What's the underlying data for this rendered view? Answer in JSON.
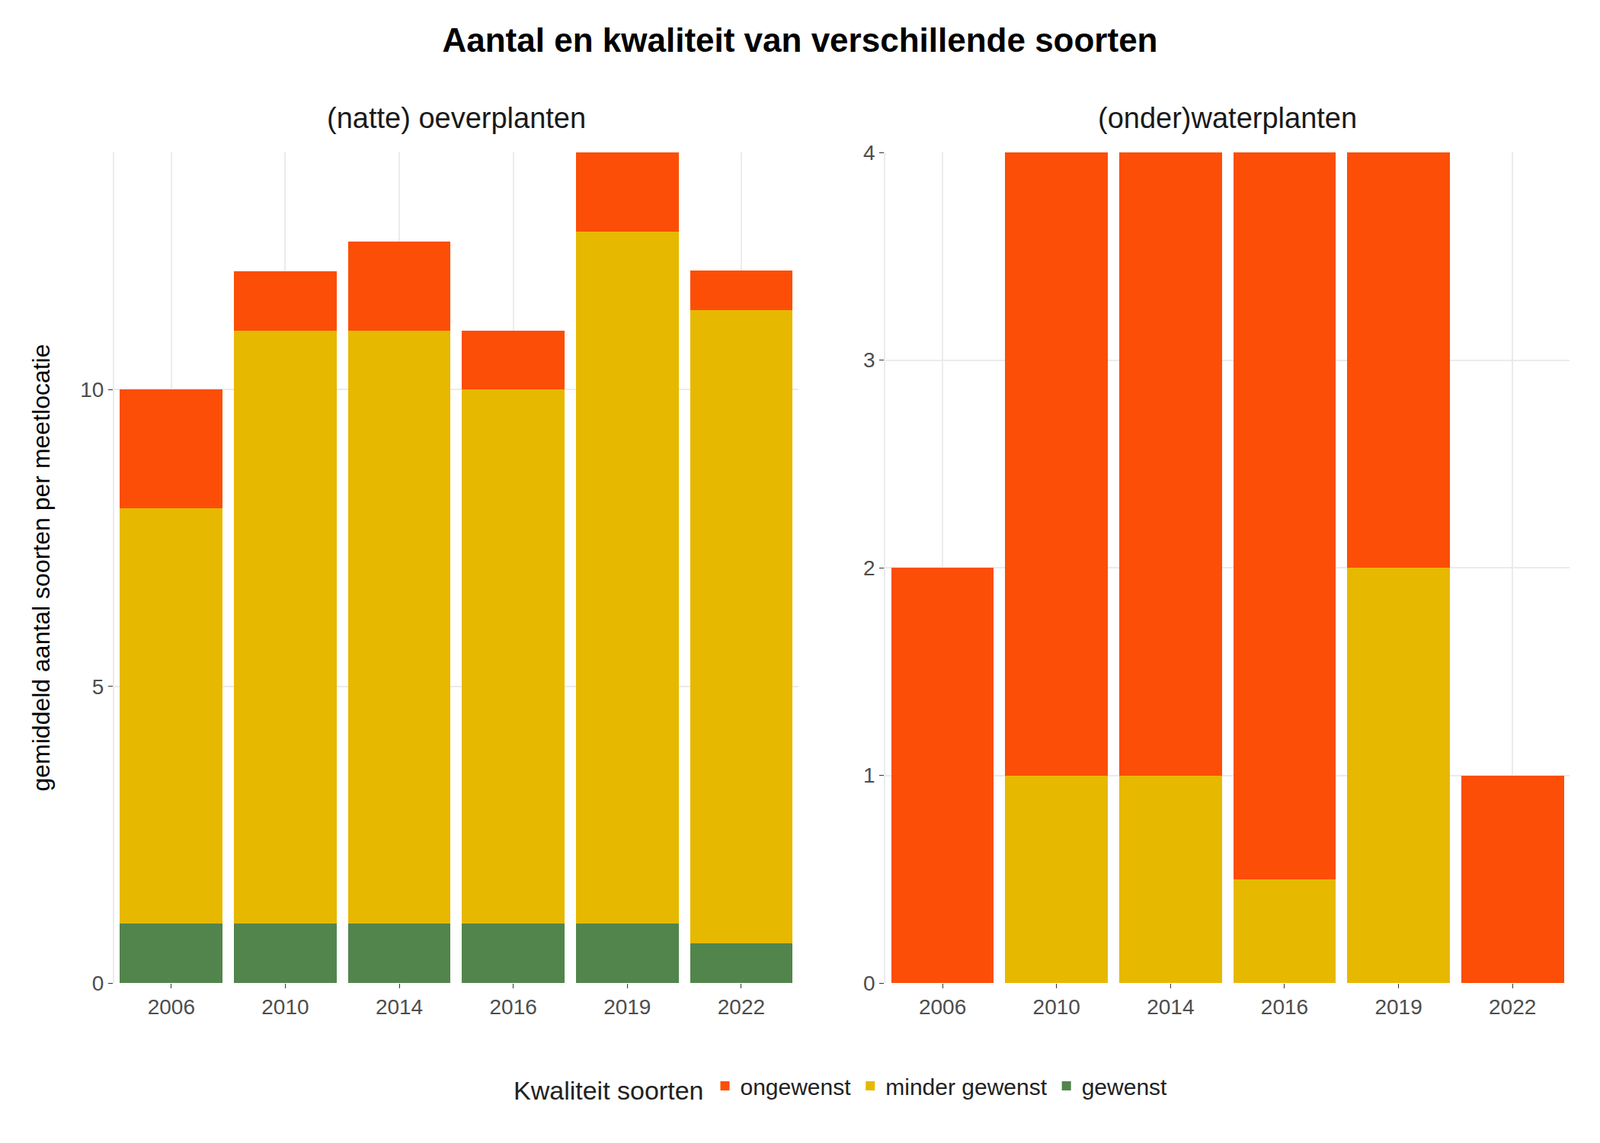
{
  "title": "Aantal en kwaliteit van verschillende soorten",
  "y_label": "gemiddeld aantal soorten per meetlocatie",
  "legend_title": "Kwaliteit soorten",
  "chart_data": [
    {
      "type": "bar",
      "subtitle": "(natte) oeverplanten",
      "stacked": true,
      "grid": true,
      "legend": "bottom",
      "categories": [
        "2006",
        "2010",
        "2014",
        "2016",
        "2019",
        "2022"
      ],
      "series": [
        {
          "name": "ongewenst",
          "color": "#FC4E07",
          "values": [
            2,
            1,
            1.5,
            1,
            1.33,
            0.67
          ]
        },
        {
          "name": "minder gewenst",
          "color": "#E7B800",
          "values": [
            7,
            10,
            10,
            9,
            11.67,
            10.67
          ]
        },
        {
          "name": "gewenst",
          "color": "#52854C",
          "values": [
            1,
            1,
            1,
            1,
            1,
            0.67
          ]
        }
      ],
      "ylim": [
        0,
        14
      ],
      "yticks": [
        0,
        5,
        10
      ]
    },
    {
      "type": "bar",
      "subtitle": "(onder)waterplanten",
      "stacked": true,
      "grid": true,
      "legend": "bottom",
      "categories": [
        "2006",
        "2010",
        "2014",
        "2016",
        "2019",
        "2022"
      ],
      "series": [
        {
          "name": "ongewenst",
          "color": "#FC4E07",
          "values": [
            2,
            3,
            3,
            3.5,
            2,
            1
          ]
        },
        {
          "name": "minder gewenst",
          "color": "#E7B800",
          "values": [
            0,
            1,
            1,
            0.5,
            2,
            0
          ]
        },
        {
          "name": "gewenst",
          "color": "#52854C",
          "values": [
            0,
            0,
            0,
            0,
            0,
            0
          ]
        }
      ],
      "ylim": [
        0,
        4
      ],
      "yticks": [
        0,
        1,
        2,
        3,
        4
      ]
    }
  ]
}
